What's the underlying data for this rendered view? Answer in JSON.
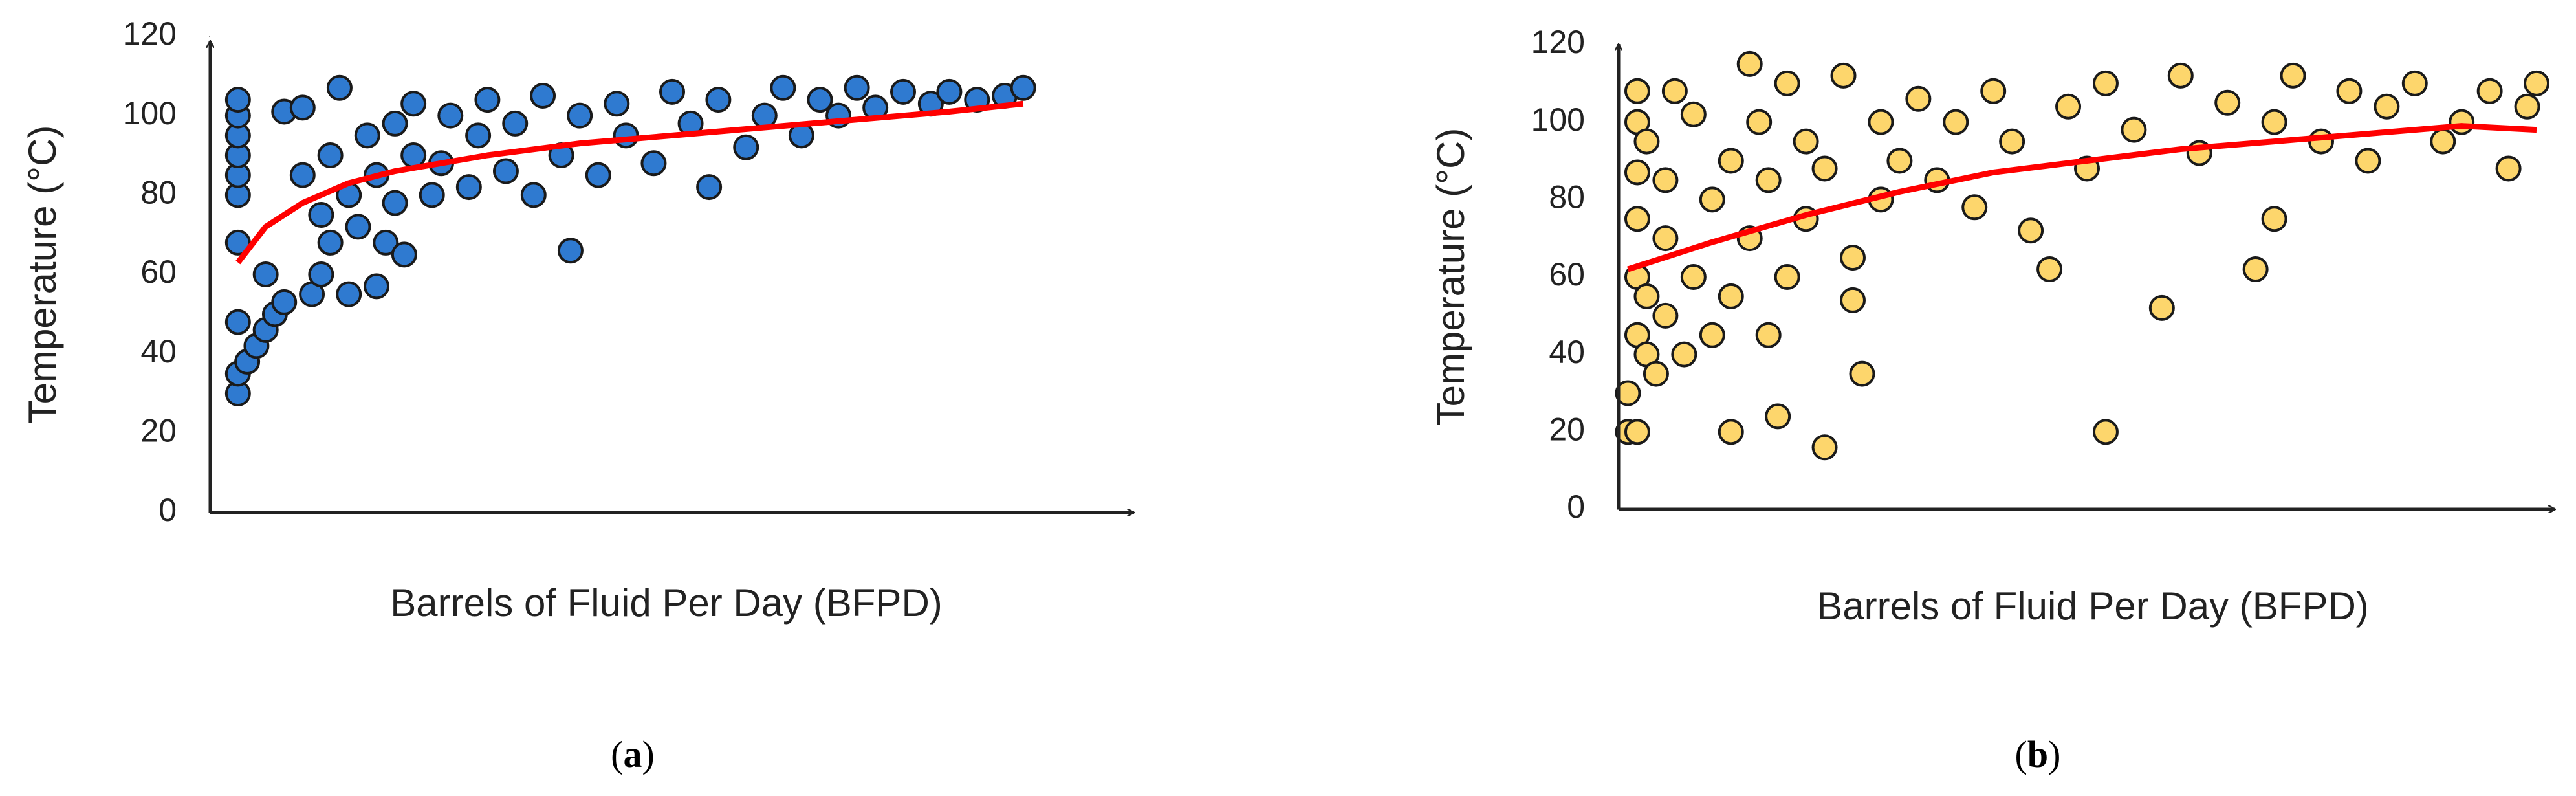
{
  "chart_data": [
    {
      "type": "scatter",
      "ylabel": "Temperature (°C)",
      "xlabel": "Barrels of Fluid Per Day (BFPD)",
      "caption_parts": [
        "(",
        "a",
        ")"
      ],
      "xlim": [
        0,
        100
      ],
      "ylim": [
        0,
        120
      ],
      "yticks": [
        0,
        20,
        40,
        60,
        80,
        100,
        120
      ],
      "series": [
        {
          "kind": "points",
          "color": "#2f7ad0",
          "x": [
            3,
            3,
            3,
            3,
            3,
            3,
            3,
            3,
            3,
            3,
            4,
            5,
            6,
            6,
            7,
            8,
            8,
            10,
            10,
            11,
            12,
            12,
            13,
            13,
            14,
            15,
            15,
            16,
            17,
            18,
            18,
            19,
            20,
            20,
            21,
            22,
            22,
            24,
            25,
            26,
            28,
            29,
            30,
            32,
            33,
            35,
            36,
            38,
            40,
            39,
            42,
            44,
            45,
            48,
            50,
            52,
            54,
            55,
            58,
            60,
            62,
            64,
            66,
            68,
            70,
            72,
            75,
            78,
            80,
            83,
            86,
            88
          ],
          "values": [
            30,
            35,
            48,
            68,
            80,
            85,
            90,
            95,
            100,
            104,
            38,
            42,
            46,
            60,
            50,
            53,
            101,
            102,
            85,
            55,
            60,
            75,
            68,
            90,
            107,
            55,
            80,
            72,
            95,
            57,
            85,
            68,
            78,
            98,
            65,
            90,
            103,
            80,
            88,
            100,
            82,
            95,
            104,
            86,
            98,
            80,
            105,
            90,
            100,
            66,
            85,
            103,
            95,
            88,
            106,
            98,
            82,
            104,
            92,
            100,
            107,
            95,
            104,
            100,
            107,
            102,
            106,
            103,
            106,
            104,
            105,
            107
          ]
        },
        {
          "kind": "line",
          "color": "#ff0000",
          "x": [
            3,
            6,
            10,
            15,
            20,
            30,
            40,
            50,
            60,
            70,
            80,
            88
          ],
          "values": [
            63,
            72,
            78,
            83,
            86,
            90,
            93,
            95,
            97,
            99,
            101,
            103
          ]
        }
      ]
    },
    {
      "type": "scatter",
      "ylabel": "Temperature (°C)",
      "xlabel": "Barrels of Fluid Per Day (BFPD)",
      "caption_parts": [
        "(",
        "b",
        ")"
      ],
      "xlim": [
        0,
        100
      ],
      "ylim": [
        0,
        120
      ],
      "yticks": [
        0,
        20,
        40,
        60,
        80,
        100,
        120
      ],
      "series": [
        {
          "kind": "points",
          "color": "#fdd66c",
          "x": [
            1,
            1,
            2,
            2,
            2,
            2,
            2,
            2,
            2,
            3,
            3,
            3,
            4,
            5,
            5,
            5,
            6,
            7,
            8,
            8,
            10,
            10,
            12,
            12,
            12,
            14,
            14,
            15,
            16,
            16,
            17,
            18,
            18,
            20,
            20,
            22,
            22,
            24,
            25,
            25,
            26,
            28,
            28,
            30,
            32,
            34,
            36,
            38,
            40,
            42,
            44,
            46,
            48,
            50,
            52,
            52,
            55,
            58,
            60,
            62,
            65,
            68,
            70,
            70,
            72,
            75,
            78,
            80,
            82,
            85,
            88,
            90,
            93,
            95,
            97,
            98
          ],
          "values": [
            30,
            20,
            20,
            45,
            60,
            75,
            87,
            100,
            108,
            40,
            55,
            95,
            35,
            50,
            70,
            85,
            108,
            40,
            60,
            102,
            80,
            45,
            20,
            55,
            90,
            115,
            70,
            100,
            85,
            45,
            24,
            110,
            60,
            75,
            95,
            16,
            88,
            112,
            65,
            54,
            35,
            80,
            100,
            90,
            106,
            85,
            100,
            78,
            108,
            95,
            72,
            62,
            104,
            88,
            20,
            110,
            98,
            52,
            112,
            92,
            105,
            62,
            75,
            100,
            112,
            95,
            108,
            90,
            104,
            110,
            95,
            100,
            108,
            88,
            104,
            110
          ]
        },
        {
          "kind": "line",
          "color": "#ff0000",
          "x": [
            1,
            10,
            20,
            30,
            40,
            50,
            60,
            70,
            80,
            90,
            98
          ],
          "values": [
            62,
            69,
            76,
            82,
            87,
            90,
            93,
            95,
            97,
            99,
            98
          ]
        }
      ]
    }
  ]
}
